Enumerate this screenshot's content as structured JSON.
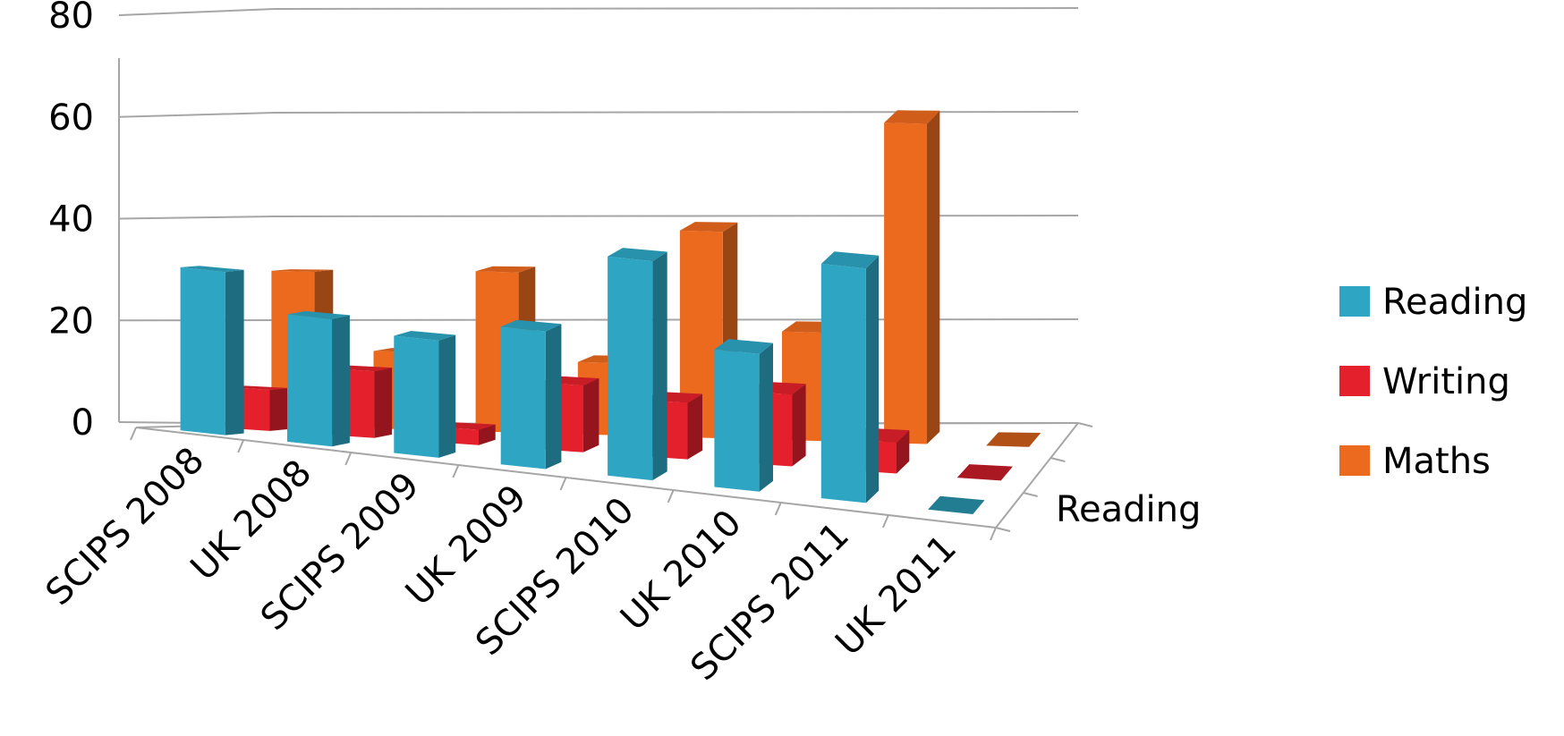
{
  "chart_data": {
    "type": "bar",
    "categories": [
      "SCIPS 2008",
      "UK 2008",
      "SCIPS 2009",
      "UK 2009",
      "SCIPS 2010",
      "UK 2010",
      "SCIPS 2011",
      "UK 2011"
    ],
    "series": [
      {
        "name": "Reading",
        "values": [
          32,
          25,
          23,
          27,
          43,
          27,
          46,
          0
        ],
        "color": "#2ea6c3"
      },
      {
        "name": "Writing",
        "values": [
          8,
          13,
          3,
          13,
          11,
          14,
          6,
          0
        ],
        "color": "#e3202c"
      },
      {
        "name": "Maths",
        "values": [
          30,
          15,
          31,
          14,
          40,
          21,
          62,
          0
        ],
        "color": "#ec6a1e"
      }
    ],
    "yticks": [
      "0",
      "20",
      "40",
      "60",
      "80"
    ],
    "ylim": [
      0,
      80
    ],
    "depth_label": "Reading",
    "legend_position": "right",
    "grid": true,
    "title": "",
    "xlabel": "",
    "ylabel": ""
  }
}
